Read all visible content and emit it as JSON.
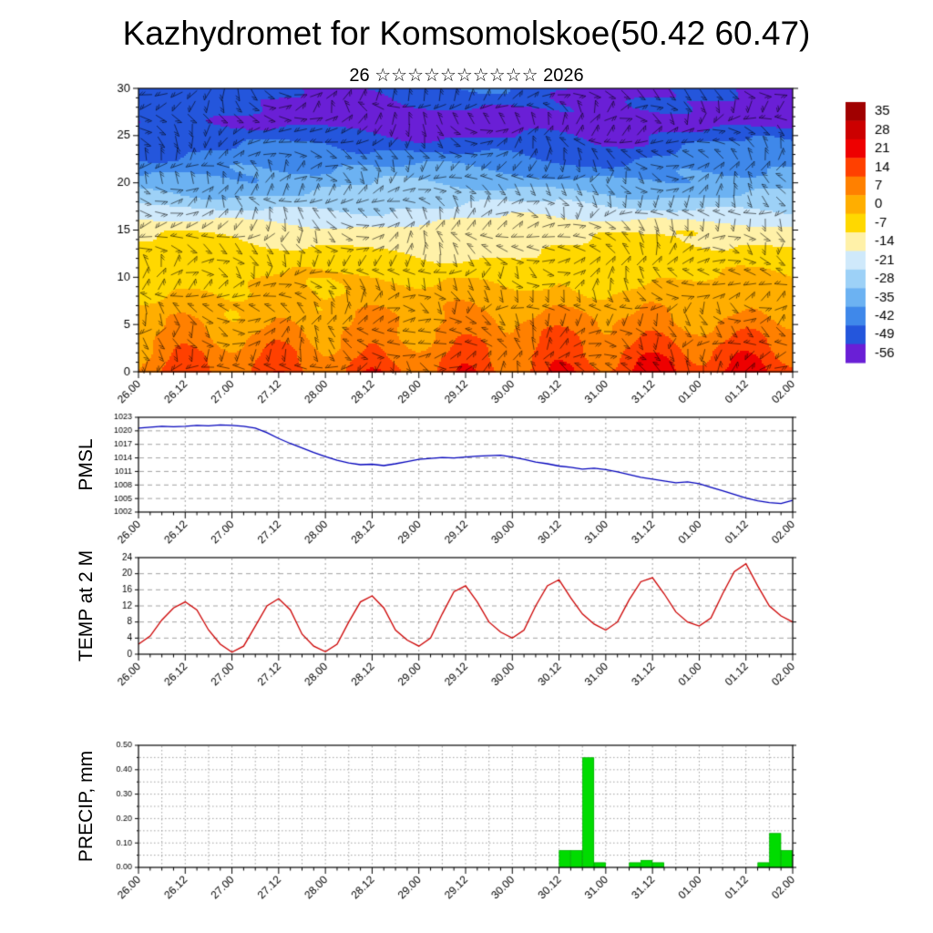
{
  "header": {
    "title": "Kazhydromet for Komsomolskoe(50.42 60.47)",
    "subtitle": "26 ☆☆☆☆☆☆☆☆☆☆ 2026"
  },
  "x_axis": {
    "tick_labels": [
      "26.00",
      "26.12",
      "27.00",
      "27.12",
      "28.00",
      "28.12",
      "29.00",
      "29.12",
      "30.00",
      "30.12",
      "31.00",
      "31.12",
      "01.00",
      "01.12",
      "02.00"
    ],
    "hours_span": 168,
    "major_step_hours": 12,
    "minor_step_hours": 3
  },
  "chart_data": [
    {
      "type": "heatmap",
      "name": "wind-temperature-height-time-section",
      "ylim": [
        0,
        30
      ],
      "y_ticks": [
        0,
        5,
        10,
        15,
        20,
        25,
        30
      ],
      "grid": false,
      "wind_barbs": true,
      "legend_position": "right",
      "legend_values": [
        "35",
        "28",
        "21",
        "14",
        "7",
        "0",
        "-7",
        "-14",
        "-21",
        "-28",
        "-35",
        "-42",
        "-49",
        "-56"
      ],
      "legend_colors": [
        "#a00000",
        "#cc0000",
        "#ee0000",
        "#ff4000",
        "#ff8000",
        "#ffae00",
        "#ffd800",
        "#fff1a8",
        "#cfe9fb",
        "#9dd1f7",
        "#6cb2f2",
        "#3f88ea",
        "#2456dc",
        "#6a1fd6"
      ],
      "profile_points": [
        [
          0,
          0
        ],
        [
          12,
          -5
        ],
        [
          15,
          -10
        ],
        [
          17,
          -19
        ],
        [
          19,
          -27
        ],
        [
          21,
          -34
        ],
        [
          23,
          -41
        ],
        [
          25,
          -47
        ],
        [
          26.5,
          -52
        ],
        [
          28,
          -48
        ],
        [
          30,
          -46
        ]
      ],
      "surface_temp": {
        "start": 13,
        "trend_per_week": 8,
        "diurnal_amplitude": 6
      }
    },
    {
      "type": "line",
      "name": "PMSL",
      "color": "#0000bb",
      "step_hours": 3,
      "ylim": [
        1002,
        1023
      ],
      "y_ticks": [
        1002,
        1005,
        1008,
        1011,
        1014,
        1017,
        1020,
        1023
      ],
      "grid": true,
      "values": [
        1020.6,
        1020.8,
        1021.0,
        1020.9,
        1021.0,
        1021.2,
        1021.1,
        1021.3,
        1021.2,
        1021.0,
        1020.6,
        1019.6,
        1018.3,
        1017.2,
        1016.2,
        1015.2,
        1014.3,
        1013.5,
        1012.9,
        1012.5,
        1012.6,
        1012.3,
        1012.7,
        1013.2,
        1013.7,
        1013.9,
        1014.1,
        1014.0,
        1014.2,
        1014.4,
        1014.5,
        1014.6,
        1014.2,
        1013.7,
        1013.1,
        1012.7,
        1012.2,
        1011.9,
        1011.5,
        1011.7,
        1011.4,
        1010.9,
        1010.3,
        1009.7,
        1009.3,
        1008.9,
        1008.5,
        1008.7,
        1008.3,
        1007.5,
        1006.7,
        1005.9,
        1005.1,
        1004.5,
        1004.1,
        1003.9,
        1004.6
      ]
    },
    {
      "type": "line",
      "name": "TEMP at 2 M",
      "color": "#cc0000",
      "step_hours": 3,
      "ylim": [
        0,
        24
      ],
      "y_ticks": [
        0,
        4,
        8,
        12,
        16,
        20,
        24
      ],
      "grid": true,
      "values": [
        2.5,
        4.5,
        8.5,
        11.5,
        13.0,
        11.0,
        6.0,
        2.5,
        0.5,
        2.0,
        7.0,
        12.0,
        13.8,
        11.0,
        5.0,
        2.0,
        0.6,
        2.5,
        8.0,
        13.0,
        14.5,
        11.5,
        6.0,
        3.5,
        2.0,
        4.0,
        10.0,
        15.5,
        17.0,
        13.0,
        8.0,
        5.5,
        4.0,
        6.0,
        12.0,
        17.0,
        18.5,
        14.0,
        10.0,
        7.5,
        6.0,
        8.0,
        13.5,
        18.0,
        19.0,
        15.0,
        10.5,
        8.0,
        7.0,
        9.0,
        15.0,
        20.5,
        22.5,
        17.0,
        12.0,
        9.5,
        8.0
      ]
    },
    {
      "type": "bar",
      "name": "PRECIP, mm",
      "color": "#00dc00",
      "bar_outline": "#00a000",
      "step_hours": 3,
      "ylim": [
        0,
        0.5
      ],
      "y_ticks": [
        0,
        0.1,
        0.2,
        0.3,
        0.4,
        0.5
      ],
      "y_tick_labels": [
        "0.00",
        "0.10",
        "0.20",
        "0.30",
        "0.40",
        "0.50"
      ],
      "grid": true,
      "values": [
        0,
        0,
        0,
        0,
        0,
        0,
        0,
        0,
        0,
        0,
        0,
        0,
        0,
        0,
        0,
        0,
        0,
        0,
        0,
        0,
        0,
        0,
        0,
        0,
        0,
        0,
        0,
        0,
        0,
        0,
        0,
        0,
        0,
        0,
        0,
        0,
        0.07,
        0.07,
        0.45,
        0.02,
        0,
        0,
        0.02,
        0.03,
        0.02,
        0,
        0,
        0,
        0,
        0,
        0,
        0,
        0,
        0.02,
        0.14,
        0.07
      ]
    }
  ]
}
